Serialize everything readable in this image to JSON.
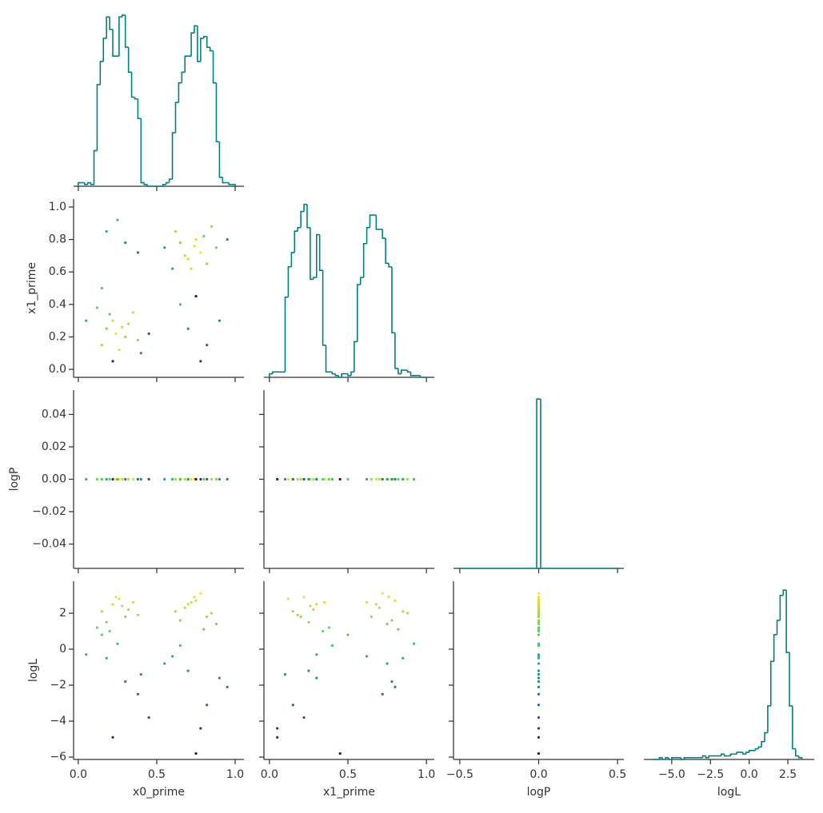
{
  "chart_data": {
    "type": "pairplot",
    "colormap": "viridis",
    "color_by": "logL",
    "clim": [
      -5.8,
      3.2
    ],
    "hist_color": "#008080",
    "hist_ylim": [
      0,
      100
    ],
    "variables": [
      {
        "name": "x0_prime",
        "xlim": [
          -0.03,
          1.056
        ],
        "xticks": [
          {
            "value": 0,
            "label": "0.0"
          },
          0.5,
          {
            "value": 1,
            "label": "1.0"
          }
        ],
        "bins": [
          0,
          0.02,
          0.04,
          0.06,
          0.08,
          0.1,
          0.12,
          0.14,
          0.16,
          0.18,
          0.2,
          0.22,
          0.24,
          0.26,
          0.28,
          0.3,
          0.32,
          0.34,
          0.36,
          0.38,
          0.4,
          0.42,
          0.44,
          0.46,
          0.48,
          0.5,
          0.52,
          0.54,
          0.56,
          0.58,
          0.6,
          0.62,
          0.64,
          0.66,
          0.68,
          0.7,
          0.72,
          0.74,
          0.76,
          0.78,
          0.8,
          0.82,
          0.84,
          0.86,
          0.88,
          0.9,
          0.92,
          0.94,
          0.96,
          0.98,
          1
        ],
        "counts": [
          2,
          2,
          1,
          2,
          1,
          20,
          57,
          70,
          83,
          95,
          88,
          73,
          73,
          95,
          96,
          78,
          64,
          50,
          49,
          38,
          2,
          1,
          0,
          0,
          0,
          0,
          0,
          1,
          2,
          4,
          30,
          47,
          58,
          64,
          73,
          73,
          86,
          90,
          70,
          83,
          84,
          78,
          76,
          58,
          25,
          5,
          2,
          2,
          1,
          1
        ],
        "samples": [
          0.15,
          0.22,
          0.3,
          0.35,
          0.18,
          0.26,
          0.32,
          0.12,
          0.38,
          0.24,
          0.2,
          0.28,
          0.68,
          0.75,
          0.82,
          0.62,
          0.88,
          0.72,
          0.78,
          0.65,
          0.85,
          0.7,
          0.8,
          0.74,
          0.18,
          0.3,
          0.25,
          0.38,
          0.7,
          0.82,
          0.65,
          0.78,
          0.05,
          0.45,
          0.55,
          0.95,
          0.22,
          0.75,
          0.9,
          0.15,
          0.6,
          0.4
        ]
      },
      {
        "name": "x1_prime",
        "xlim": [
          -0.035,
          1.05
        ],
        "xticks": [
          {
            "value": 0,
            "label": "0.0"
          },
          0.5,
          {
            "value": 1,
            "label": "1.0"
          }
        ],
        "ylim": [
          -0.049,
          1.049
        ],
        "yticks": [
          {
            "value": 0,
            "label": "0.0"
          },
          0.2,
          0.4,
          0.6,
          0.8,
          {
            "value": 1,
            "label": "1.0"
          }
        ],
        "bins": [
          0,
          0.02,
          0.04,
          0.06,
          0.08,
          0.1,
          0.12,
          0.14,
          0.16,
          0.18,
          0.2,
          0.22,
          0.24,
          0.26,
          0.28,
          0.3,
          0.32,
          0.34,
          0.36,
          0.38,
          0.4,
          0.42,
          0.44,
          0.46,
          0.48,
          0.5,
          0.52,
          0.54,
          0.56,
          0.58,
          0.6,
          0.62,
          0.64,
          0.66,
          0.68,
          0.7,
          0.72,
          0.74,
          0.76,
          0.78,
          0.8,
          0.82,
          0.84,
          0.86,
          0.88,
          0.9,
          0.92,
          0.94,
          0.96,
          0.98,
          1
        ],
        "counts": [
          2,
          3,
          3,
          3,
          3,
          45,
          62,
          70,
          82,
          84,
          93,
          97,
          84,
          55,
          56,
          80,
          60,
          18,
          3,
          3,
          2,
          1,
          0,
          2,
          2,
          1,
          3,
          20,
          52,
          56,
          75,
          84,
          91,
          91,
          83,
          83,
          78,
          64,
          62,
          25,
          5,
          2,
          4,
          4,
          3,
          1,
          1,
          1,
          0,
          0
        ],
        "samples": [
          0.15,
          0.3,
          0.2,
          0.35,
          0.25,
          0.12,
          0.28,
          0.38,
          0.18,
          0.22,
          0.34,
          0.26,
          0.7,
          0.8,
          0.65,
          0.85,
          0.75,
          0.62,
          0.72,
          0.78,
          0.88,
          0.68,
          0.82,
          0.76,
          0.85,
          0.78,
          0.92,
          0.72,
          0.25,
          0.15,
          0.4,
          0.05,
          0.3,
          0.22,
          0.75,
          0.8,
          0.05,
          0.45,
          0.3,
          0.5,
          0.62,
          0.1
        ]
      },
      {
        "name": "logP",
        "xlim": [
          -0.54,
          0.54
        ],
        "xticks": [
          {
            "value": -0.5,
            "label": "−0.5"
          },
          {
            "value": 0,
            "label": "0.0"
          },
          0.5
        ],
        "ylim": [
          -0.055,
          0.055
        ],
        "yticks": [
          {
            "value": -0.04,
            "label": "−0.04"
          },
          {
            "value": -0.02,
            "label": "−0.02"
          },
          {
            "value": 0,
            "label": "0.00"
          },
          0.02,
          0.04
        ],
        "bins": [
          -0.51,
          -0.0125,
          0.0125,
          0.51
        ],
        "counts": [
          0,
          95,
          0
        ],
        "samples": [
          0,
          0,
          0,
          0,
          0,
          0,
          0,
          0,
          0,
          0,
          0,
          0,
          0,
          0,
          0,
          0,
          0,
          0,
          0,
          0,
          0,
          0,
          0,
          0,
          0,
          0,
          0,
          0,
          0,
          0,
          0,
          0,
          0,
          0,
          0,
          0,
          0,
          0,
          0,
          0,
          0,
          0
        ]
      },
      {
        "name": "logL",
        "xlim": [
          -6.8,
          4.2
        ],
        "xticks": [
          {
            "value": -5,
            "label": "−5.0"
          },
          {
            "value": -2.5,
            "label": "−2.5"
          },
          {
            "value": 0,
            "label": "0.0"
          },
          2.5
        ],
        "ylim": [
          -6.13,
          3.78
        ],
        "yticks": [
          {
            "value": -6,
            "label": "−6"
          },
          {
            "value": -4,
            "label": "−4"
          },
          {
            "value": -2,
            "label": "−2"
          },
          0,
          2
        ],
        "bins": [
          -6.2,
          -6,
          -5.8,
          -5.6,
          -5.4,
          -5.2,
          -5,
          -4.8,
          -4.6,
          -4.4,
          -4.2,
          -4,
          -3.8,
          -3.6,
          -3.4,
          -3.2,
          -3,
          -2.8,
          -2.6,
          -2.4,
          -2.2,
          -2,
          -1.8,
          -1.6,
          -1.4,
          -1.2,
          -1,
          -0.8,
          -0.6,
          -0.4,
          -0.2,
          0,
          0.2,
          0.4,
          0.6,
          0.8,
          1,
          1.2,
          1.4,
          1.6,
          1.8,
          2,
          2.2,
          2.4,
          2.6,
          2.8,
          3,
          3.2,
          3.4
        ],
        "counts": [
          0,
          0,
          1,
          0,
          1,
          0,
          1,
          1,
          1,
          0,
          1,
          1,
          1,
          1,
          1,
          1,
          2,
          1,
          2,
          2,
          2,
          2,
          3,
          2,
          2,
          3,
          3,
          4,
          4,
          3,
          4,
          5,
          5,
          6,
          7,
          10,
          15,
          30,
          55,
          70,
          78,
          92,
          95,
          60,
          30,
          6,
          2,
          1
        ],
        "samples": [
          2.1,
          2.5,
          1.8,
          2.6,
          1.5,
          2.8,
          2.2,
          1.2,
          1.9,
          2.9,
          1.0,
          2.4,
          2.3,
          2.7,
          1.8,
          2.1,
          1.4,
          2.6,
          3.1,
          1.6,
          2.0,
          2.5,
          1.1,
          2.9,
          -0.5,
          -1.8,
          0.3,
          -2.5,
          -1.2,
          -3.1,
          0.2,
          -4.4,
          -0.3,
          -3.8,
          -0.8,
          -2.1,
          -4.9,
          -5.8,
          -1.6,
          0.8,
          -0.4,
          -1.4
        ]
      }
    ]
  }
}
